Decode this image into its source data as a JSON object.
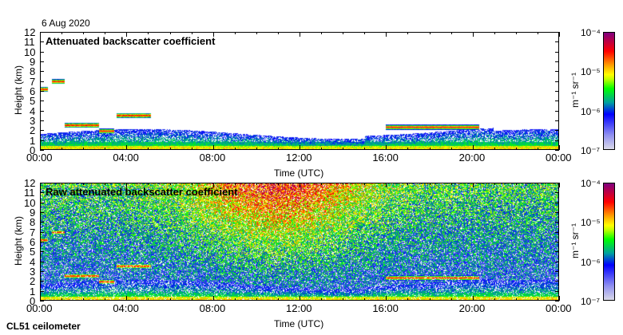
{
  "date": "6 Aug 2020",
  "instrument": "CL51 ceilometer",
  "colorbar": {
    "unit": "m⁻¹ sr⁻¹",
    "tick_labels": [
      "10⁻⁴",
      "10⁻⁵",
      "10⁻⁶",
      "10⁻⁷"
    ]
  },
  "chart_data": [
    {
      "type": "heatmap",
      "title": "Attenuated backscatter coefficient",
      "xlabel": "Time (UTC)",
      "ylabel": "Height (km)",
      "xticks": [
        "00:00",
        "04:00",
        "08:00",
        "12:00",
        "16:00",
        "20:00",
        "00:00"
      ],
      "yticks": [
        "0",
        "1",
        "2",
        "3",
        "4",
        "5",
        "6",
        "7",
        "8",
        "9",
        "10",
        "11",
        "12"
      ],
      "xlim_hours": [
        0,
        24
      ],
      "ylim_km": [
        0,
        12
      ],
      "clim_log10": [
        -7,
        -4
      ],
      "cloud_layers": [
        {
          "start_h": 0,
          "end_h": 0.3,
          "height_km": 6.2
        },
        {
          "start_h": 0.5,
          "end_h": 1.1,
          "height_km": 7.0
        },
        {
          "start_h": 1.1,
          "end_h": 2.7,
          "height_km": 2.5
        },
        {
          "start_h": 2.7,
          "end_h": 3.4,
          "height_km": 1.9
        },
        {
          "start_h": 3.5,
          "end_h": 5.1,
          "height_km": 3.5
        },
        {
          "start_h": 16,
          "end_h": 20.3,
          "height_km": 2.3
        }
      ]
    },
    {
      "type": "heatmap",
      "title": "Raw attenuated backscatter coefficient",
      "xlabel": "Time (UTC)",
      "ylabel": "Height (km)",
      "xticks": [
        "00:00",
        "04:00",
        "08:00",
        "12:00",
        "16:00",
        "20:00",
        "00:00"
      ],
      "yticks": [
        "0",
        "1",
        "2",
        "3",
        "4",
        "5",
        "6",
        "7",
        "8",
        "9",
        "10",
        "11",
        "12"
      ],
      "xlim_hours": [
        0,
        24
      ],
      "ylim_km": [
        0,
        12
      ],
      "clim_log10": [
        -7,
        -4
      ]
    }
  ]
}
